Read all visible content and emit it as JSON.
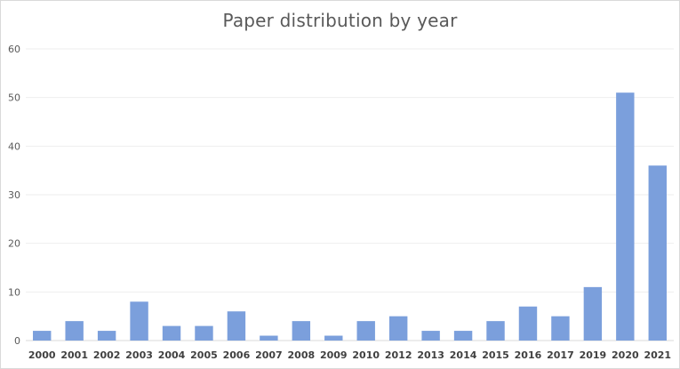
{
  "chart_data": {
    "type": "bar",
    "title": "Paper distribution by year",
    "xlabel": "",
    "ylabel": "",
    "categories": [
      "2000",
      "2001",
      "2002",
      "2003",
      "2004",
      "2005",
      "2006",
      "2007",
      "2008",
      "2009",
      "2010",
      "2012",
      "2013",
      "2014",
      "2015",
      "2016",
      "2017",
      "2019",
      "2020",
      "2021"
    ],
    "values": [
      2,
      4,
      2,
      8,
      3,
      3,
      6,
      1,
      4,
      1,
      4,
      5,
      2,
      2,
      4,
      7,
      5,
      11,
      51,
      36
    ],
    "ylim": [
      0,
      60
    ],
    "yticks": [
      0,
      10,
      20,
      30,
      40,
      50,
      60
    ],
    "grid": true,
    "legend": "none",
    "bar_color": "#7b9fdc",
    "grid_color": "#eeeeee"
  }
}
